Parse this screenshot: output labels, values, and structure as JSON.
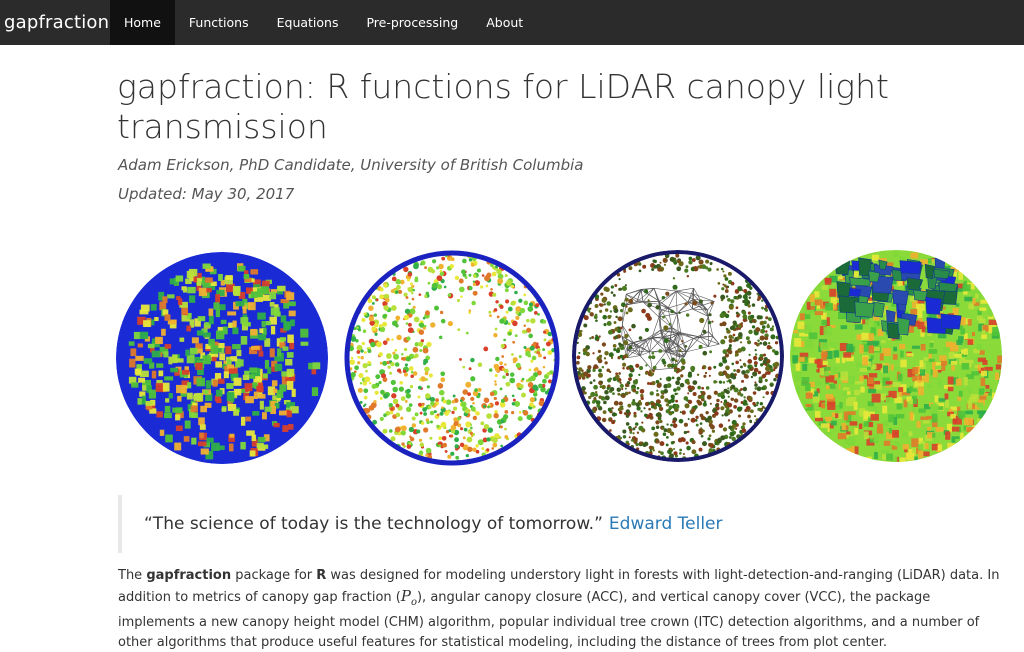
{
  "nav": {
    "brand": "gapfraction",
    "items": [
      {
        "label": "Home",
        "active": true
      },
      {
        "label": "Functions",
        "active": false
      },
      {
        "label": "Equations",
        "active": false
      },
      {
        "label": "Pre-processing",
        "active": false
      },
      {
        "label": "About",
        "active": false
      }
    ]
  },
  "header": {
    "title": "gapfraction: R functions for LiDAR canopy light transmission",
    "author": "Adam Erickson, PhD Candidate, University of British Columbia",
    "updated": "Updated: May 30, 2017"
  },
  "quote": {
    "text": "“The science of today is the technology of tomorrow.”",
    "author": "Edward Teller"
  },
  "intro": {
    "p1": "The ",
    "pkg": "gapfraction",
    "p2": " package for ",
    "r": "R",
    "p3": " was designed for modeling understory light in forests with light-detection-and-ranging (LiDAR) data. In addition to metrics of canopy gap fraction (",
    "symbol": "P",
    "subscript": "o",
    "p4": "), angular canopy closure (ACC), and vertical canopy cover (VCC), the package implements a new canopy height model (CHM) algorithm, popular individual tree crown (ITC) detection algorithms, and a number of other algorithms that produce useful features for statistical modeling, including the distance of trees from plot center."
  },
  "images": [
    {
      "name": "canopy-image-1",
      "icon": "hemispherical-canopy-plot"
    },
    {
      "name": "canopy-image-2",
      "icon": "hemispherical-canopy-plot"
    },
    {
      "name": "canopy-image-3",
      "icon": "hemispherical-canopy-plot"
    },
    {
      "name": "canopy-image-4",
      "icon": "hemispherical-canopy-plot"
    }
  ],
  "colors": {
    "navbar": "#2b2b2b",
    "active_tab": "#111111",
    "link": "#2a7ab8",
    "blue_fill": "#1a2bd6",
    "green": "#5fcf3a",
    "yellow": "#e8e83a",
    "red": "#d8402a"
  }
}
